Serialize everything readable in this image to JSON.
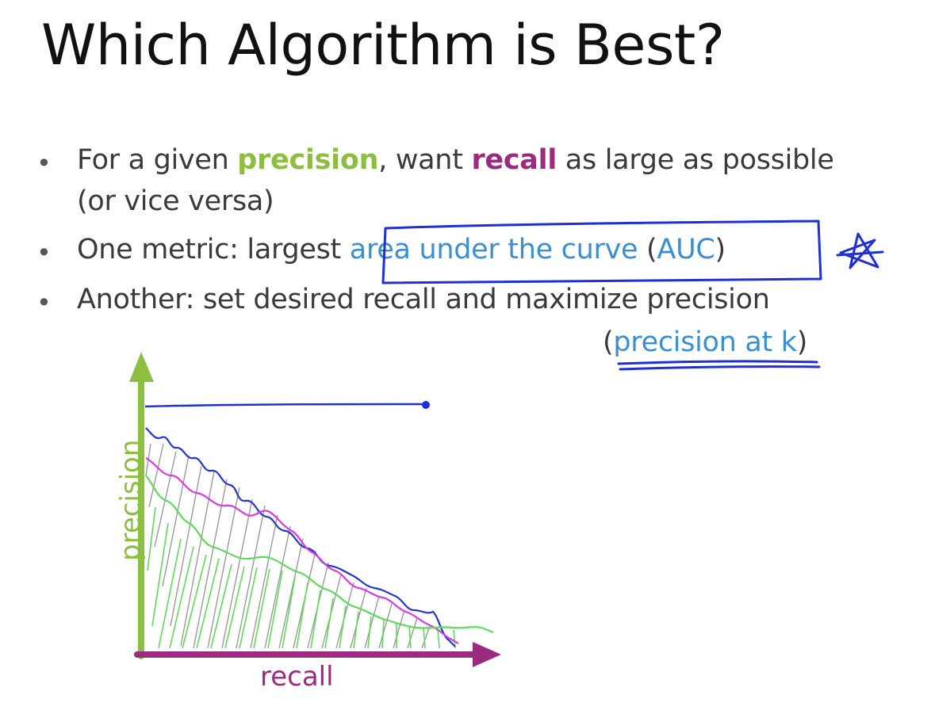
{
  "slide": {
    "title": "Which Algorithm is Best?",
    "bullets": [
      {
        "parts": [
          "For a given ",
          "precision",
          ", want ",
          "recall",
          " as large as possible"
        ],
        "continuation": "(or vice versa)"
      },
      {
        "prefix": "One metric: largest ",
        "highlight": "area under the curve",
        "open_paren": " (",
        "abbrev": "AUC",
        "close_paren": ")"
      },
      {
        "text": "Another: set desired recall and maximize precision",
        "continuation_open": "(",
        "continuation_highlight": "precision at k",
        "continuation_close": ")"
      }
    ]
  },
  "chart": {
    "y_axis_label": "precision",
    "x_axis_label": "recall"
  },
  "colors": {
    "precision_green": "#8cbf3f",
    "recall_purple": "#9c2a7f",
    "link_blue": "#3b8fd0",
    "ink_blue": "#1f2fd6",
    "curve_magenta": "#d43ee0",
    "curve_green": "#5fd95a",
    "hatch_gray": "#9a9a9a"
  },
  "annotations": {
    "star_icon": "hand-drawn-star",
    "box": "hand-drawn-box-around-auc",
    "underline": "hand-drawn-underline-precision-at-k"
  }
}
